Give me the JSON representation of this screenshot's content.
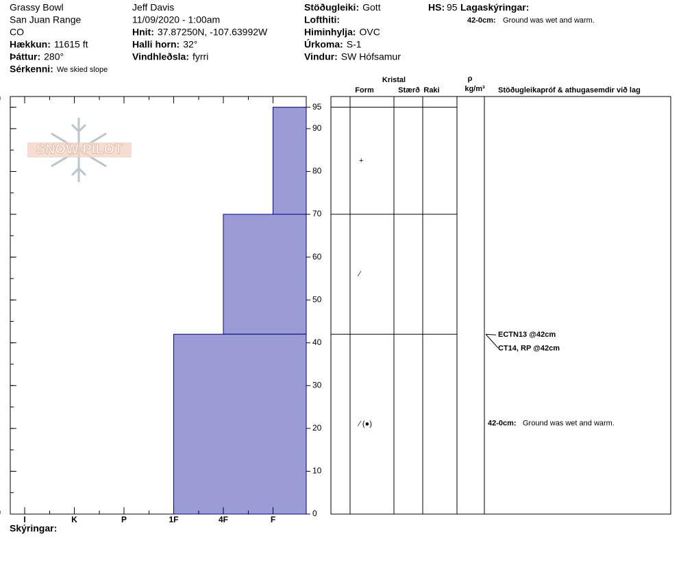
{
  "header": {
    "col1": [
      "Grassy Bowl",
      "San Juan Range",
      "CO"
    ],
    "col1_fields": [
      {
        "label": "Hækkun:",
        "value": "11615 ft"
      },
      {
        "label": "Þáttur:",
        "value": "280°"
      },
      {
        "label": "Sérkenni:",
        "value": "We skied slope"
      }
    ],
    "col2": [
      "Jeff Davis",
      "11/09/2020 - 1:00am"
    ],
    "col2_fields": [
      {
        "label": "Hnit:",
        "value": "37.87250N, -107.63992W"
      },
      {
        "label": "Halli horn:",
        "value": "32°"
      },
      {
        "label": "Vindhleðsla:",
        "value": "fyrri"
      }
    ],
    "col3_fields": [
      {
        "label": "Stöðugleiki:",
        "value": "Gott"
      },
      {
        "label": "Lofthiti:"
      },
      {
        "label": "Himinhylja:",
        "value": "OVC"
      },
      {
        "label": "Úrkoma:",
        "value": "S-1"
      },
      {
        "label": "Vindur:",
        "value": "SW Hófsamur"
      }
    ],
    "hs": {
      "label": "HS:",
      "value": "95"
    },
    "notes": {
      "label": "Lagaskýringar:",
      "range": "42-0cm:",
      "text": "Ground was wet and warm."
    }
  },
  "logo": "SNOW PILOT",
  "chart_data": {
    "type": "snow-profile",
    "hardness": [
      "I",
      "K",
      "P",
      "1F",
      "4F",
      "F"
    ],
    "ylim": [
      0,
      97.5
    ],
    "yticks": [
      0,
      10,
      20,
      30,
      40,
      50,
      60,
      70,
      80,
      90,
      95
    ],
    "color": "#9b9bd6",
    "layers": [
      {
        "top": 95,
        "bottom": 70,
        "hardness": "F",
        "form": "+"
      },
      {
        "top": 70,
        "bottom": 42,
        "hardness": "4F",
        "form": "⁄"
      },
      {
        "top": 42,
        "bottom": 0,
        "hardness": "1F",
        "form": "⁄ (●)"
      }
    ],
    "columns": {
      "crystal": "Kristal",
      "form": "Form",
      "size": "Stærð",
      "moisture": "Raki",
      "rho": "ρ",
      "density": "kg/m³",
      "tests": "Stöðugleikapróf & athugasemdir við lag"
    },
    "tests": [
      {
        "label": "ECTN13 @42cm",
        "depth": 42
      },
      {
        "label": "CT14, RP @42cm",
        "depth": 42
      }
    ],
    "comment": {
      "range": "42-0cm:",
      "text": "Ground was wet and warm.",
      "top": 42,
      "bottom": 0
    }
  },
  "footer": "Skýringar:"
}
